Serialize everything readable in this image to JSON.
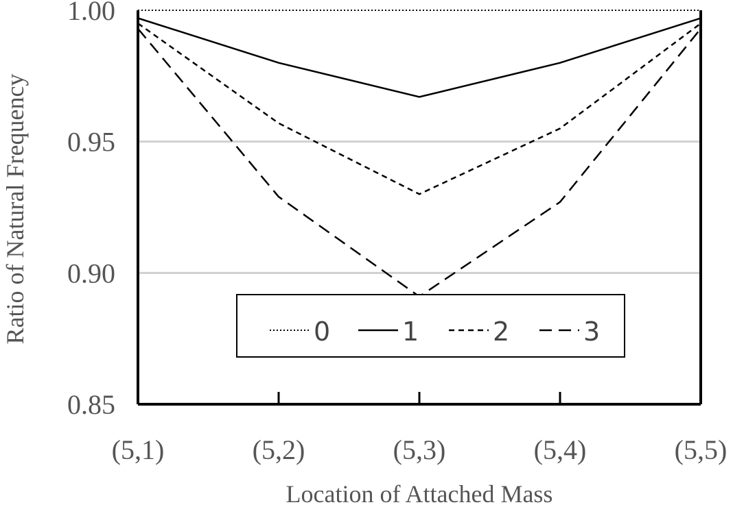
{
  "chart_data": {
    "type": "line",
    "title": "",
    "xlabel": "Location of Attached Mass",
    "ylabel": "Ratio of Natural Frequency",
    "categories": [
      "(5,1)",
      "(5,2)",
      "(5,3)",
      "(5,4)",
      "(5,5)"
    ],
    "ylim": [
      0.85,
      1.0
    ],
    "yticks": [
      "0.85",
      "0.90",
      "0.95",
      "1.00"
    ],
    "grid": true,
    "legend_position": "bottom-center",
    "series": [
      {
        "name": "0",
        "style": "dotted",
        "values": [
          1.0,
          1.0,
          1.0,
          1.0,
          1.0
        ]
      },
      {
        "name": "1",
        "style": "solid",
        "values": [
          0.997,
          0.98,
          0.967,
          0.98,
          0.997
        ]
      },
      {
        "name": "2",
        "style": "short-dash",
        "values": [
          0.995,
          0.957,
          0.93,
          0.955,
          0.995
        ]
      },
      {
        "name": "3",
        "style": "long-dash",
        "values": [
          0.993,
          0.929,
          0.891,
          0.927,
          0.993
        ]
      }
    ]
  }
}
